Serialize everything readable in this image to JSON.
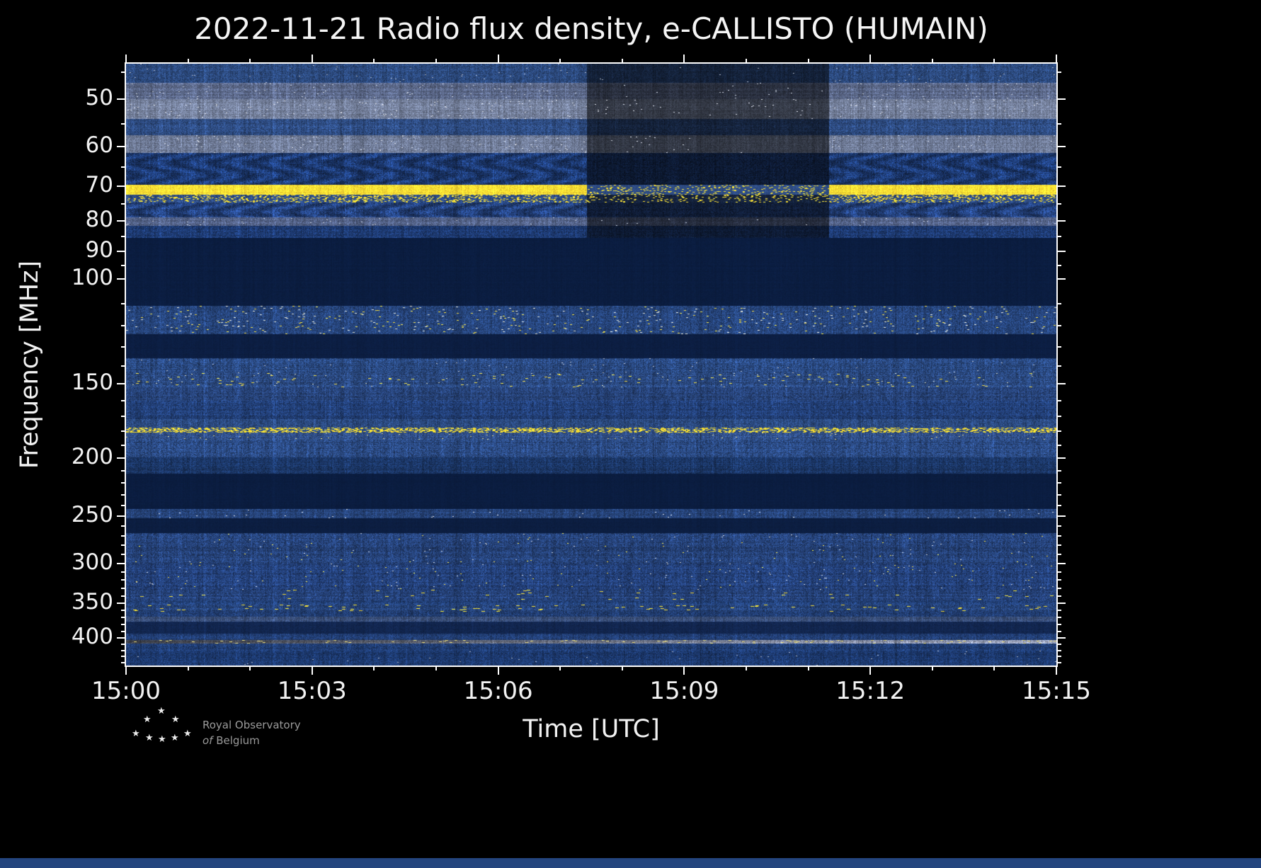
{
  "chart_data": {
    "type": "heatmap",
    "title": "2022-11-21 Radio flux density, e-CALLISTO (HUMAIN)",
    "xlabel": "Time [UTC]",
    "ylabel": "Frequency [MHz]",
    "x_ticks": [
      "15:00",
      "15:03",
      "15:06",
      "15:09",
      "15:12",
      "15:15"
    ],
    "x_major_minutes": [
      0,
      3,
      6,
      9,
      12,
      15
    ],
    "x_minor_minutes": [
      1,
      2,
      4,
      5,
      7,
      8,
      10,
      11,
      13,
      14
    ],
    "duration_minutes": 15,
    "y_scale": "log",
    "y_ticks": [
      50,
      60,
      70,
      80,
      90,
      100,
      150,
      200,
      250,
      300,
      350,
      400
    ],
    "y_minor_ticks": [
      45,
      55,
      65,
      75,
      85,
      95,
      110,
      120,
      130,
      140,
      160,
      170,
      180,
      190,
      210,
      220,
      230,
      240,
      260,
      270,
      280,
      290,
      310,
      320,
      330,
      340,
      360,
      370,
      380,
      390,
      410,
      420,
      430,
      440
    ],
    "freq_range": [
      43.6,
      445
    ],
    "legend": "none",
    "grid": false,
    "dim_window": {
      "t0": 0.495,
      "t1": 0.755,
      "fmax": 85,
      "factor": 0.45
    },
    "bands": [
      {
        "f1": 43.6,
        "f2": 47.0,
        "base": "#2c4a7e",
        "noise": 0.3,
        "speckles": [
          {
            "c": "#aab4c8",
            "p": 0.004,
            "len": 2
          }
        ]
      },
      {
        "f1": 47.0,
        "f2": 50.0,
        "base": "#5c698a",
        "noise": 0.25,
        "speckles": [
          {
            "c": "#c9d0dd",
            "p": 0.01,
            "len": 2
          }
        ]
      },
      {
        "f1": 50.0,
        "f2": 54.0,
        "base": "#76829e",
        "noise": 0.22,
        "speckles": [
          {
            "c": "#d9dde8",
            "p": 0.012,
            "len": 2
          }
        ]
      },
      {
        "f1": 54.0,
        "f2": 57.5,
        "base": "#2e4c82",
        "noise": 0.3
      },
      {
        "f1": 57.5,
        "f2": 61.5,
        "base": "#707c98",
        "noise": 0.24,
        "speckles": [
          {
            "c": "#d2d7e2",
            "p": 0.01,
            "len": 2
          }
        ]
      },
      {
        "f1": 61.5,
        "f2": 69.6,
        "base": "#1d3a72",
        "noise": 0.38,
        "arc": true
      },
      {
        "f1": 69.6,
        "f2": 72.2,
        "base": "#ffdf35",
        "noise": 0.14,
        "solid": true
      },
      {
        "f1": 72.2,
        "f2": 74.5,
        "base": "#2e4c84",
        "noise": 0.3,
        "speckles": [
          {
            "c": "#ffdf35",
            "p": 0.3,
            "len": 3
          }
        ]
      },
      {
        "f1": 74.5,
        "f2": 79.0,
        "base": "#23407a",
        "noise": 0.35,
        "arc": true
      },
      {
        "f1": 79.0,
        "f2": 81.5,
        "base": "#55648a",
        "noise": 0.26,
        "speckles": [
          {
            "c": "#c3cad8",
            "p": 0.008,
            "len": 2
          }
        ]
      },
      {
        "f1": 81.5,
        "f2": 85.5,
        "base": "#1e3b73",
        "noise": 0.32
      },
      {
        "f1": 85.5,
        "f2": 111.0,
        "base": "#0b1d40",
        "noise": 0.08
      },
      {
        "f1": 111.0,
        "f2": 124.0,
        "base": "#27467e",
        "noise": 0.32,
        "speckles": [
          {
            "c": "#e4e6d8",
            "p": 0.012,
            "len": 3
          },
          {
            "c": "#ffe34a",
            "p": 0.012,
            "len": 3
          }
        ]
      },
      {
        "f1": 124.0,
        "f2": 136.0,
        "base": "#0c1e42",
        "noise": 0.08
      },
      {
        "f1": 136.0,
        "f2": 144.0,
        "base": "#29487f",
        "noise": 0.34,
        "speckles": [
          {
            "c": "#b9c1d2",
            "p": 0.004,
            "len": 2
          }
        ]
      },
      {
        "f1": 144.0,
        "f2": 152.0,
        "base": "#2b4a82",
        "noise": 0.34,
        "speckles": [
          {
            "c": "#ffe34a",
            "p": 0.015,
            "len": 4
          },
          {
            "c": "#cfd4c2",
            "p": 0.006,
            "len": 2
          }
        ]
      },
      {
        "f1": 152.0,
        "f2": 160.0,
        "base": "#28457c",
        "noise": 0.32
      },
      {
        "f1": 160.0,
        "f2": 172.0,
        "base": "#223f76",
        "noise": 0.32
      },
      {
        "f1": 172.0,
        "f2": 177.5,
        "base": "#2b4a80",
        "noise": 0.3
      },
      {
        "f1": 177.5,
        "f2": 181.0,
        "base": "#30508a",
        "noise": 0.28,
        "speckles": [
          {
            "c": "#ffde32",
            "p": 0.8,
            "len": 4
          }
        ]
      },
      {
        "f1": 181.0,
        "f2": 186.0,
        "base": "#31508a",
        "noise": 0.3,
        "speckles": [
          {
            "c": "#e0d98e",
            "p": 0.01,
            "len": 2
          }
        ]
      },
      {
        "f1": 186.0,
        "f2": 199.0,
        "base": "#2a4981",
        "noise": 0.34
      },
      {
        "f1": 199.0,
        "f2": 212.0,
        "base": "#1c3869",
        "noise": 0.3
      },
      {
        "f1": 212.0,
        "f2": 243.0,
        "base": "#0b1d40",
        "noise": 0.07
      },
      {
        "f1": 243.0,
        "f2": 252.0,
        "base": "#27457c",
        "noise": 0.28,
        "speckles": [
          {
            "c": "#d9dde6",
            "p": 0.004,
            "len": 2
          }
        ]
      },
      {
        "f1": 252.0,
        "f2": 267.0,
        "base": "#0c1e41",
        "noise": 0.07
      },
      {
        "f1": 267.0,
        "f2": 300.0,
        "base": "#26437a",
        "noise": 0.34,
        "speckles": [
          {
            "c": "#c6cdd9",
            "p": 0.003,
            "len": 2
          },
          {
            "c": "#ffe34a",
            "p": 0.002,
            "len": 2
          }
        ]
      },
      {
        "f1": 300.0,
        "f2": 332.0,
        "base": "#24417a",
        "noise": 0.34,
        "speckles": [
          {
            "c": "#c6cdd9",
            "p": 0.004,
            "len": 2
          },
          {
            "c": "#ffe34a",
            "p": 0.003,
            "len": 2
          }
        ]
      },
      {
        "f1": 332.0,
        "f2": 346.0,
        "base": "#26437b",
        "noise": 0.32,
        "speckles": [
          {
            "c": "#ffe03a",
            "p": 0.012,
            "len": 5
          }
        ]
      },
      {
        "f1": 346.0,
        "f2": 352.0,
        "base": "#224077",
        "noise": 0.3
      },
      {
        "f1": 352.0,
        "f2": 362.0,
        "base": "#26447b",
        "noise": 0.32,
        "speckles": [
          {
            "c": "#ffdf35",
            "p": 0.035,
            "len": 5
          }
        ]
      },
      {
        "f1": 362.0,
        "f2": 369.0,
        "base": "#223f75",
        "noise": 0.3
      },
      {
        "f1": 369.0,
        "f2": 376.0,
        "base": "#3c527e",
        "noise": 0.26
      },
      {
        "f1": 376.0,
        "f2": 394.0,
        "base": "#12264f",
        "noise": 0.14
      },
      {
        "f1": 394.0,
        "f2": 403.0,
        "base": "#223f76",
        "noise": 0.28
      },
      {
        "f1": 403.0,
        "f2": 409.0,
        "base": "#6f7587",
        "noise": 0.26,
        "grad": 0.9,
        "speckles": [
          {
            "c": "#e6d87a",
            "p": 0.05,
            "len": 4
          }
        ]
      },
      {
        "f1": 409.0,
        "f2": 420.0,
        "base": "#203d73",
        "noise": 0.3
      },
      {
        "f1": 420.0,
        "f2": 445.0,
        "base": "#1d3a70",
        "noise": 0.3,
        "speckles": [
          {
            "c": "#aab3c6",
            "p": 0.003,
            "len": 2
          }
        ]
      }
    ]
  },
  "footer": {
    "org_line1": "Royal Observatory",
    "org_line2_prefix": "of",
    "org_line2": "Belgium"
  },
  "colors": {
    "background": "#000000",
    "axis": "#ffffff",
    "text": "#f2f2f2",
    "quiet_band": "#0b1d40",
    "noise_blue": "#27477f",
    "interference_yellow": "#ffdf35",
    "bottom_strip": "#24457e"
  }
}
